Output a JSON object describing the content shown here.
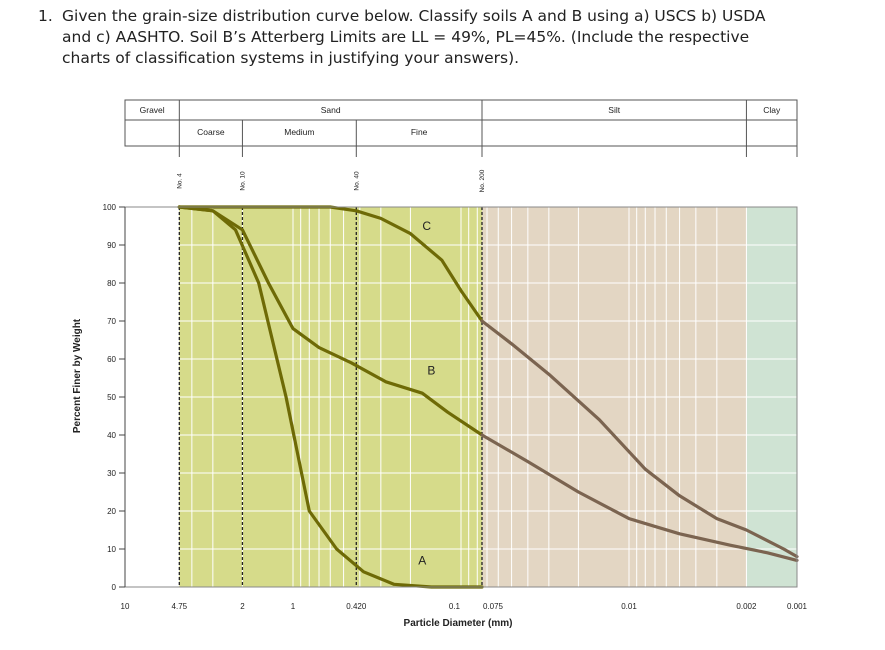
{
  "question": {
    "number": "1.",
    "text": "Given the grain-size distribution curve below. Classify soils A and B using a) USCS b) USDA and c) AASHTO. Soil B’s Atterberg Limits are LL = 49%, PL=45%. (Include the respective charts of classification systems in justifying your answers)."
  },
  "colors": {
    "sand": "#d6db8a",
    "silt": "#e3d6c3",
    "clay": "#cfe3d3",
    "curve_a": "#6e6a06",
    "curve_b": "#6e6a06",
    "curve_c": "#6e6a06",
    "curve_silt": "#7b6450",
    "grid": "#ffffff"
  },
  "chart_data": {
    "type": "line",
    "xlabel": "Particle Diameter (mm)",
    "ylabel": "Percent Finer by Weight",
    "x_scale": "log-reversed",
    "xlim": [
      10,
      0.001
    ],
    "ylim": [
      0,
      100
    ],
    "x_ticks": [
      {
        "value": 10,
        "label": "10"
      },
      {
        "value": 4.75,
        "label": "4.75"
      },
      {
        "value": 2,
        "label": "2"
      },
      {
        "value": 1,
        "label": "1"
      },
      {
        "value": 0.42,
        "label": "0.420"
      },
      {
        "value": 0.1,
        "label": "0.1"
      },
      {
        "value": 0.075,
        "label": "0.075"
      },
      {
        "value": 0.01,
        "label": "0.01"
      },
      {
        "value": 0.002,
        "label": "0.002"
      },
      {
        "value": 0.001,
        "label": "0.001"
      }
    ],
    "y_ticks": [
      0,
      10,
      20,
      30,
      40,
      50,
      60,
      70,
      80,
      90,
      100
    ],
    "sieves": [
      {
        "value": 4.75,
        "label": "No. 4"
      },
      {
        "value": 2,
        "label": "No. 10"
      },
      {
        "value": 0.42,
        "label": "No. 40"
      },
      {
        "value": 0.075,
        "label": "No. 200"
      }
    ],
    "zones": {
      "top": [
        {
          "label": "Gravel",
          "from": 10,
          "to": 4.75
        },
        {
          "label": "Sand",
          "from": 4.75,
          "to": 0.075
        },
        {
          "label": "Silt",
          "from": 0.075,
          "to": 0.002
        },
        {
          "label": "Clay",
          "from": 0.002,
          "to": 0.001
        }
      ],
      "sub": [
        {
          "label": "Coarse",
          "from": 4.75,
          "to": 2
        },
        {
          "label": "Medium",
          "from": 2,
          "to": 0.42
        },
        {
          "label": "Fine",
          "from": 0.42,
          "to": 0.075
        }
      ]
    },
    "series": [
      {
        "name": "A",
        "label_at": {
          "x": 0.17,
          "y": 7
        },
        "points": [
          [
            4.75,
            100
          ],
          [
            3.0,
            99
          ],
          [
            2.2,
            94
          ],
          [
            1.6,
            80
          ],
          [
            1.1,
            50
          ],
          [
            0.8,
            20
          ],
          [
            0.55,
            10
          ],
          [
            0.38,
            4
          ],
          [
            0.25,
            0.7
          ],
          [
            0.15,
            0
          ],
          [
            0.075,
            0
          ]
        ]
      },
      {
        "name": "B",
        "label_at": {
          "x": 0.15,
          "y": 57
        },
        "points": [
          [
            4.75,
            100
          ],
          [
            3.0,
            99
          ],
          [
            2.0,
            94
          ],
          [
            1.4,
            80
          ],
          [
            1.0,
            68
          ],
          [
            0.7,
            63
          ],
          [
            0.45,
            59
          ],
          [
            0.28,
            54
          ],
          [
            0.17,
            51
          ],
          [
            0.12,
            46
          ],
          [
            0.075,
            40
          ],
          [
            0.04,
            33
          ],
          [
            0.02,
            25
          ],
          [
            0.01,
            18
          ],
          [
            0.005,
            14
          ],
          [
            0.0025,
            11
          ],
          [
            0.0015,
            9
          ],
          [
            0.001,
            7
          ]
        ]
      },
      {
        "name": "C",
        "label_at": {
          "x": 0.16,
          "y": 95
        },
        "points": [
          [
            4.75,
            100
          ],
          [
            2,
            100
          ],
          [
            0.6,
            100
          ],
          [
            0.42,
            99
          ],
          [
            0.3,
            97
          ],
          [
            0.2,
            93
          ],
          [
            0.13,
            86
          ],
          [
            0.1,
            78
          ],
          [
            0.075,
            70
          ],
          [
            0.05,
            64
          ],
          [
            0.03,
            56
          ],
          [
            0.015,
            44
          ],
          [
            0.008,
            31
          ],
          [
            0.005,
            24
          ],
          [
            0.003,
            18
          ],
          [
            0.002,
            15
          ],
          [
            0.0012,
            10
          ],
          [
            0.001,
            8
          ]
        ]
      }
    ]
  }
}
